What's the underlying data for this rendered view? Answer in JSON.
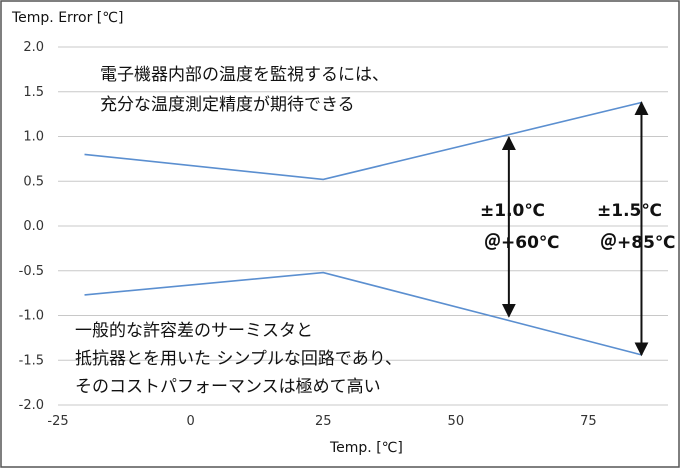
{
  "chart_data": {
    "type": "line",
    "xlabel": "Temp. [℃]",
    "ylabel": "Temp. Error [℃]",
    "xlim": [
      -25,
      90
    ],
    "ylim": [
      -2.0,
      2.0
    ],
    "x_ticks": [
      "-25",
      "0",
      "25",
      "50",
      "75"
    ],
    "y_ticks": [
      "2.0",
      "1.5",
      "1.0",
      "0.5",
      "0.0",
      "-0.5",
      "-1.0",
      "-1.5",
      "-2.0"
    ],
    "grid": "horizontal",
    "series": [
      {
        "color": "#5b8fd0",
        "x": [
          -20,
          25,
          85
        ],
        "y": [
          0.8,
          0.52,
          1.38
        ]
      },
      {
        "color": "#5b8fd0",
        "x": [
          -20,
          25,
          85
        ],
        "y": [
          -0.77,
          -0.52,
          -1.44
        ]
      }
    ],
    "annotations": {
      "top_text": [
        "電子機器内部の温度を監視するには、",
        "充分な温度測定精度が期待できる"
      ],
      "bottom_text": [
        "一般的な許容差のサーミスタと",
        "抵抗器とを用いた シンプルな回路であり、",
        "そのコストパフォーマンスは極めて高い"
      ],
      "arrow1": {
        "x": 60,
        "y_top": 0.99,
        "y_bottom": -1.01,
        "label": "±1.0℃",
        "sublabel": "＠+60℃"
      },
      "arrow2": {
        "x": 85,
        "y_top": 1.38,
        "y_bottom": -1.44,
        "label": "±1.5℃",
        "sublabel": "＠+85℃"
      }
    }
  }
}
